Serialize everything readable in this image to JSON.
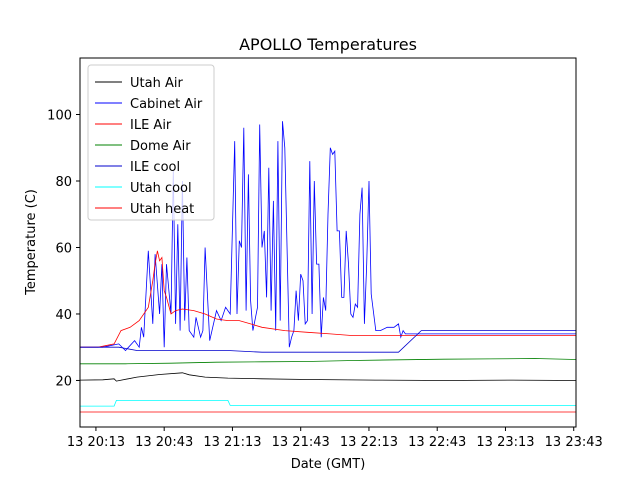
{
  "chart_data": {
    "type": "line",
    "title": "APOLLO Temperatures",
    "xlabel": "Date (GMT)",
    "ylabel": "Temperature (C)",
    "xlim": [
      0,
      218
    ],
    "ylim": [
      6,
      117
    ],
    "x_ticks": [
      {
        "value": 7,
        "label": "13 20:13"
      },
      {
        "value": 37,
        "label": "13 20:43"
      },
      {
        "value": 67,
        "label": "13 21:13"
      },
      {
        "value": 97,
        "label": "13 21:43"
      },
      {
        "value": 127,
        "label": "13 22:13"
      },
      {
        "value": 157,
        "label": "13 22:43"
      },
      {
        "value": 187,
        "label": "13 23:13"
      },
      {
        "value": 217,
        "label": "13 23:43"
      }
    ],
    "y_ticks": [
      {
        "value": 20,
        "label": "20"
      },
      {
        "value": 40,
        "label": "40"
      },
      {
        "value": 60,
        "label": "60"
      },
      {
        "value": 80,
        "label": "80"
      },
      {
        "value": 100,
        "label": "100"
      }
    ],
    "legend_position": "top-left",
    "series": [
      {
        "name": "Utah Air",
        "color": "#000000",
        "x": [
          0,
          10,
          15,
          16,
          25,
          35,
          45,
          48,
          55,
          65,
          80,
          100,
          130,
          160,
          190,
          218
        ],
        "y": [
          20.1,
          20.2,
          20.5,
          19.8,
          21,
          21.8,
          22.3,
          21.7,
          21,
          20.7,
          20.5,
          20.3,
          20.1,
          20,
          20.1,
          20
        ]
      },
      {
        "name": "Cabinet Air",
        "color": "#0000ff",
        "x": [
          0,
          10,
          17,
          20,
          24,
          26,
          27,
          28,
          30,
          32,
          33,
          35,
          36,
          37,
          38,
          40,
          41,
          42,
          43,
          44,
          45,
          46,
          47,
          48,
          50,
          51,
          53,
          54,
          55,
          57,
          60,
          62,
          64,
          66,
          68,
          69,
          70,
          71,
          72,
          73,
          74,
          75,
          76,
          78,
          79,
          80,
          81,
          82,
          83,
          84,
          85,
          86,
          87,
          88,
          89,
          90,
          92,
          93,
          94,
          95,
          96,
          97,
          98,
          99,
          100,
          101,
          102,
          103,
          104,
          105,
          106,
          107,
          108,
          109,
          110,
          111,
          112,
          113,
          114,
          115,
          116,
          117,
          118,
          119,
          120,
          121,
          122,
          123,
          124,
          125,
          126,
          127,
          128,
          130,
          132,
          135,
          138,
          140,
          141,
          142,
          143,
          145,
          150,
          160,
          170,
          180,
          190,
          200,
          210,
          218
        ],
        "y": [
          30,
          30,
          31,
          29,
          32,
          30,
          36,
          33,
          59,
          37,
          58,
          40,
          55,
          30,
          55,
          40,
          83,
          37,
          67,
          35,
          80,
          38,
          57,
          35,
          33,
          39,
          33,
          35,
          60,
          32,
          41,
          38,
          42,
          40,
          92,
          40,
          62,
          60,
          96,
          41,
          82,
          44,
          35,
          42,
          97,
          60,
          65,
          45,
          84,
          41,
          74,
          35,
          92,
          38,
          98,
          90,
          30,
          33,
          35,
          47,
          38,
          52,
          50,
          37,
          38,
          86,
          40,
          80,
          55,
          55,
          33,
          45,
          41,
          70,
          90,
          88,
          89,
          65,
          65,
          45,
          45,
          65,
          55,
          40,
          39,
          43,
          42,
          70,
          78,
          37,
          55,
          80,
          46,
          35,
          35,
          36,
          36,
          37,
          33,
          35,
          34,
          34,
          34,
          34,
          34,
          34,
          34,
          34,
          34,
          34
        ]
      },
      {
        "name": "ILE Air",
        "color": "#ff0000",
        "x": [
          0,
          8,
          15,
          18,
          22,
          26,
          30,
          32,
          33,
          34,
          35,
          36,
          37,
          38,
          40,
          42,
          45,
          50,
          55,
          60,
          65,
          70,
          75,
          80,
          90,
          100,
          110,
          120,
          130,
          140,
          150,
          160,
          170,
          180,
          190,
          200,
          210,
          218
        ],
        "y": [
          30,
          30,
          31,
          35,
          36,
          38,
          42,
          50,
          55,
          59,
          56,
          57,
          47,
          45,
          40,
          41,
          41.5,
          41,
          40,
          38.5,
          38,
          38,
          37,
          36,
          35,
          34.5,
          34,
          33.5,
          33.5,
          33.5,
          33.5,
          33.5,
          33.5,
          33.5,
          33.5,
          33.5,
          33.5,
          33.5
        ]
      },
      {
        "name": "Dome Air",
        "color": "#008000",
        "x": [
          0,
          20,
          40,
          60,
          80,
          100,
          120,
          140,
          160,
          180,
          200,
          218
        ],
        "y": [
          25,
          25,
          25.2,
          25.5,
          25.6,
          25.7,
          26,
          26.2,
          26.4,
          26.5,
          26.6,
          26.3
        ]
      },
      {
        "name": "ILE cool",
        "color": "#0000cd",
        "x": [
          0,
          10,
          17,
          25,
          35,
          45,
          55,
          65,
          80,
          100,
          120,
          140,
          150,
          160,
          180,
          200,
          218
        ],
        "y": [
          30,
          30,
          30,
          29,
          29,
          29,
          29,
          29,
          28.5,
          28.5,
          28.5,
          28.5,
          35,
          35,
          35,
          35,
          35
        ]
      },
      {
        "name": "Utah cool",
        "color": "#00ffff",
        "x": [
          0,
          15,
          16,
          65,
          66,
          218
        ],
        "y": [
          12.3,
          12.3,
          14,
          14,
          12.5,
          12.5
        ]
      },
      {
        "name": "Utah heat",
        "color": "#ff0000",
        "x": [
          0,
          218
        ],
        "y": [
          10.5,
          10.5
        ]
      }
    ]
  }
}
